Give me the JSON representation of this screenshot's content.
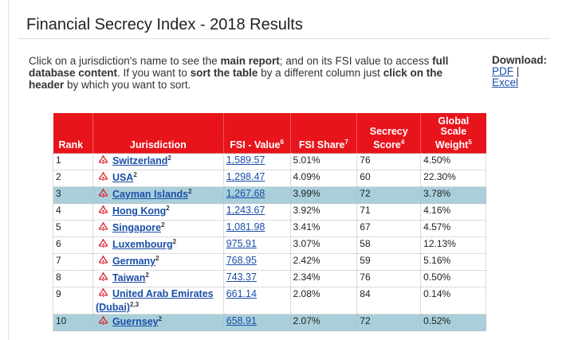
{
  "page": {
    "title": "Financial Secrecy Index - 2018 Results",
    "intro": {
      "p1": "Click on a jurisdiction's name to see the ",
      "b1": "main report",
      "p2": "; and on its FSI value to access ",
      "b2": "full database content",
      "p3": ". If you want to ",
      "b3": "sort the table",
      "p4": " by a different column just ",
      "b4": "click on the header",
      "p5": " by which you want to sort."
    },
    "download": {
      "label": "Download:",
      "pdf": "PDF",
      "separator": " |",
      "excel": "Excel"
    }
  },
  "table": {
    "headers": {
      "rank": "Rank",
      "jurisdiction": "Jurisdiction",
      "fsi_value": "FSI - Value",
      "fsi_value_sup": "6",
      "fsi_share": "FSI Share",
      "fsi_share_sup": "7",
      "secrecy_score_1": "Secrecy",
      "secrecy_score_2": "Score",
      "secrecy_score_sup": "4",
      "gsw_1": "Global",
      "gsw_2": "Scale",
      "gsw_3": "Weight",
      "gsw_sup": "5"
    },
    "rows": [
      {
        "rank": "1",
        "name": "Switzerland",
        "sup": "2",
        "value": "1,589.57",
        "share": "5.01%",
        "score": "76",
        "weight": "4.50%",
        "highlight": false
      },
      {
        "rank": "2",
        "name": "USA",
        "sup": "2",
        "value": "1,298.47",
        "share": "4.09%",
        "score": "60",
        "weight": "22.30%",
        "highlight": false
      },
      {
        "rank": "3",
        "name": "Cayman Islands",
        "sup": "2",
        "value": "1,267.68",
        "share": "3.99%",
        "score": "72",
        "weight": "3.78%",
        "highlight": true
      },
      {
        "rank": "4",
        "name": "Hong Kong",
        "sup": "2",
        "value": "1,243.67",
        "share": "3.92%",
        "score": "71",
        "weight": "4.16%",
        "highlight": false
      },
      {
        "rank": "5",
        "name": "Singapore",
        "sup": "2",
        "value": "1,081.98",
        "share": "3.41%",
        "score": "67",
        "weight": "4.57%",
        "highlight": false
      },
      {
        "rank": "6",
        "name": "Luxembourg",
        "sup": "2",
        "value": "975.91",
        "share": "3.07%",
        "score": "58",
        "weight": "12.13%",
        "highlight": false
      },
      {
        "rank": "7",
        "name": "Germany",
        "sup": "2",
        "value": "768.95",
        "share": "2.42%",
        "score": "59",
        "weight": "5.16%",
        "highlight": false
      },
      {
        "rank": "8",
        "name": "Taiwan",
        "sup": "2",
        "value": "743.37",
        "share": "2.34%",
        "score": "76",
        "weight": "0.50%",
        "highlight": false
      },
      {
        "rank": "9",
        "name": "United Arab Emirates (Dubai)",
        "sup": "2,3",
        "value": "661.14",
        "share": "2.08%",
        "score": "84",
        "weight": "0.14%",
        "highlight": false
      },
      {
        "rank": "10",
        "name": "Guernsey",
        "sup": "2",
        "value": "658.91",
        "share": "2.07%",
        "score": "72",
        "weight": "0.52%",
        "highlight": true
      }
    ]
  },
  "colors": {
    "header_bg": "#e8141b",
    "highlight_row": "#a9cfdb",
    "link": "#1a4ea8"
  },
  "icons": {
    "row_icon": "pdf-icon"
  }
}
